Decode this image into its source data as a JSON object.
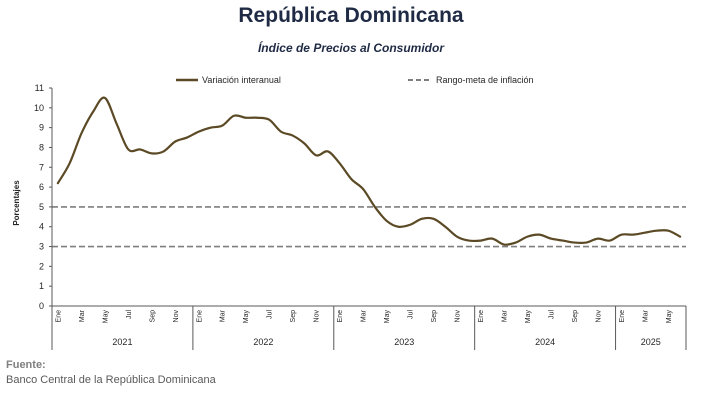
{
  "header": {
    "title": "República Dominicana",
    "subtitle": "Índice de Precios al Consumidor"
  },
  "footer": {
    "source_label": "Fuente:",
    "source_text": "Banco Central de la República Dominicana"
  },
  "chart_data": {
    "type": "line",
    "ylabel": "Porcentajes",
    "ylim": [
      0,
      11
    ],
    "yticks": [
      0,
      1,
      2,
      3,
      4,
      5,
      6,
      7,
      8,
      9,
      10,
      11
    ],
    "grid": false,
    "legend_position": "top",
    "month_labels": [
      "Ene",
      "",
      "Mar",
      "",
      "May",
      "",
      "Jul",
      "",
      "Sep",
      "",
      "Nov",
      ""
    ],
    "years": [
      {
        "label": "2021",
        "months": 12
      },
      {
        "label": "2022",
        "months": 12
      },
      {
        "label": "2023",
        "months": 12
      },
      {
        "label": "2024",
        "months": 12
      },
      {
        "label": "2025",
        "months": 6
      }
    ],
    "series": [
      {
        "name": "Variación interanual",
        "color": "#5b4a25",
        "style": "solid",
        "values": [
          6.2,
          7.2,
          8.7,
          9.8,
          10.5,
          9.2,
          7.9,
          7.9,
          7.7,
          7.8,
          8.3,
          8.5,
          8.8,
          9.0,
          9.1,
          9.6,
          9.5,
          9.5,
          9.4,
          8.8,
          8.6,
          8.2,
          7.6,
          7.8,
          7.2,
          6.4,
          5.9,
          5.0,
          4.3,
          4.0,
          4.1,
          4.4,
          4.4,
          4.0,
          3.5,
          3.3,
          3.3,
          3.4,
          3.1,
          3.2,
          3.5,
          3.6,
          3.4,
          3.3,
          3.2,
          3.2,
          3.4,
          3.3,
          3.6,
          3.6,
          3.7,
          3.8,
          3.8,
          3.5
        ]
      },
      {
        "name": "Rango-meta de inflación",
        "color": "#7f7f7f",
        "style": "dashed",
        "bounds": [
          3,
          5
        ]
      }
    ]
  }
}
